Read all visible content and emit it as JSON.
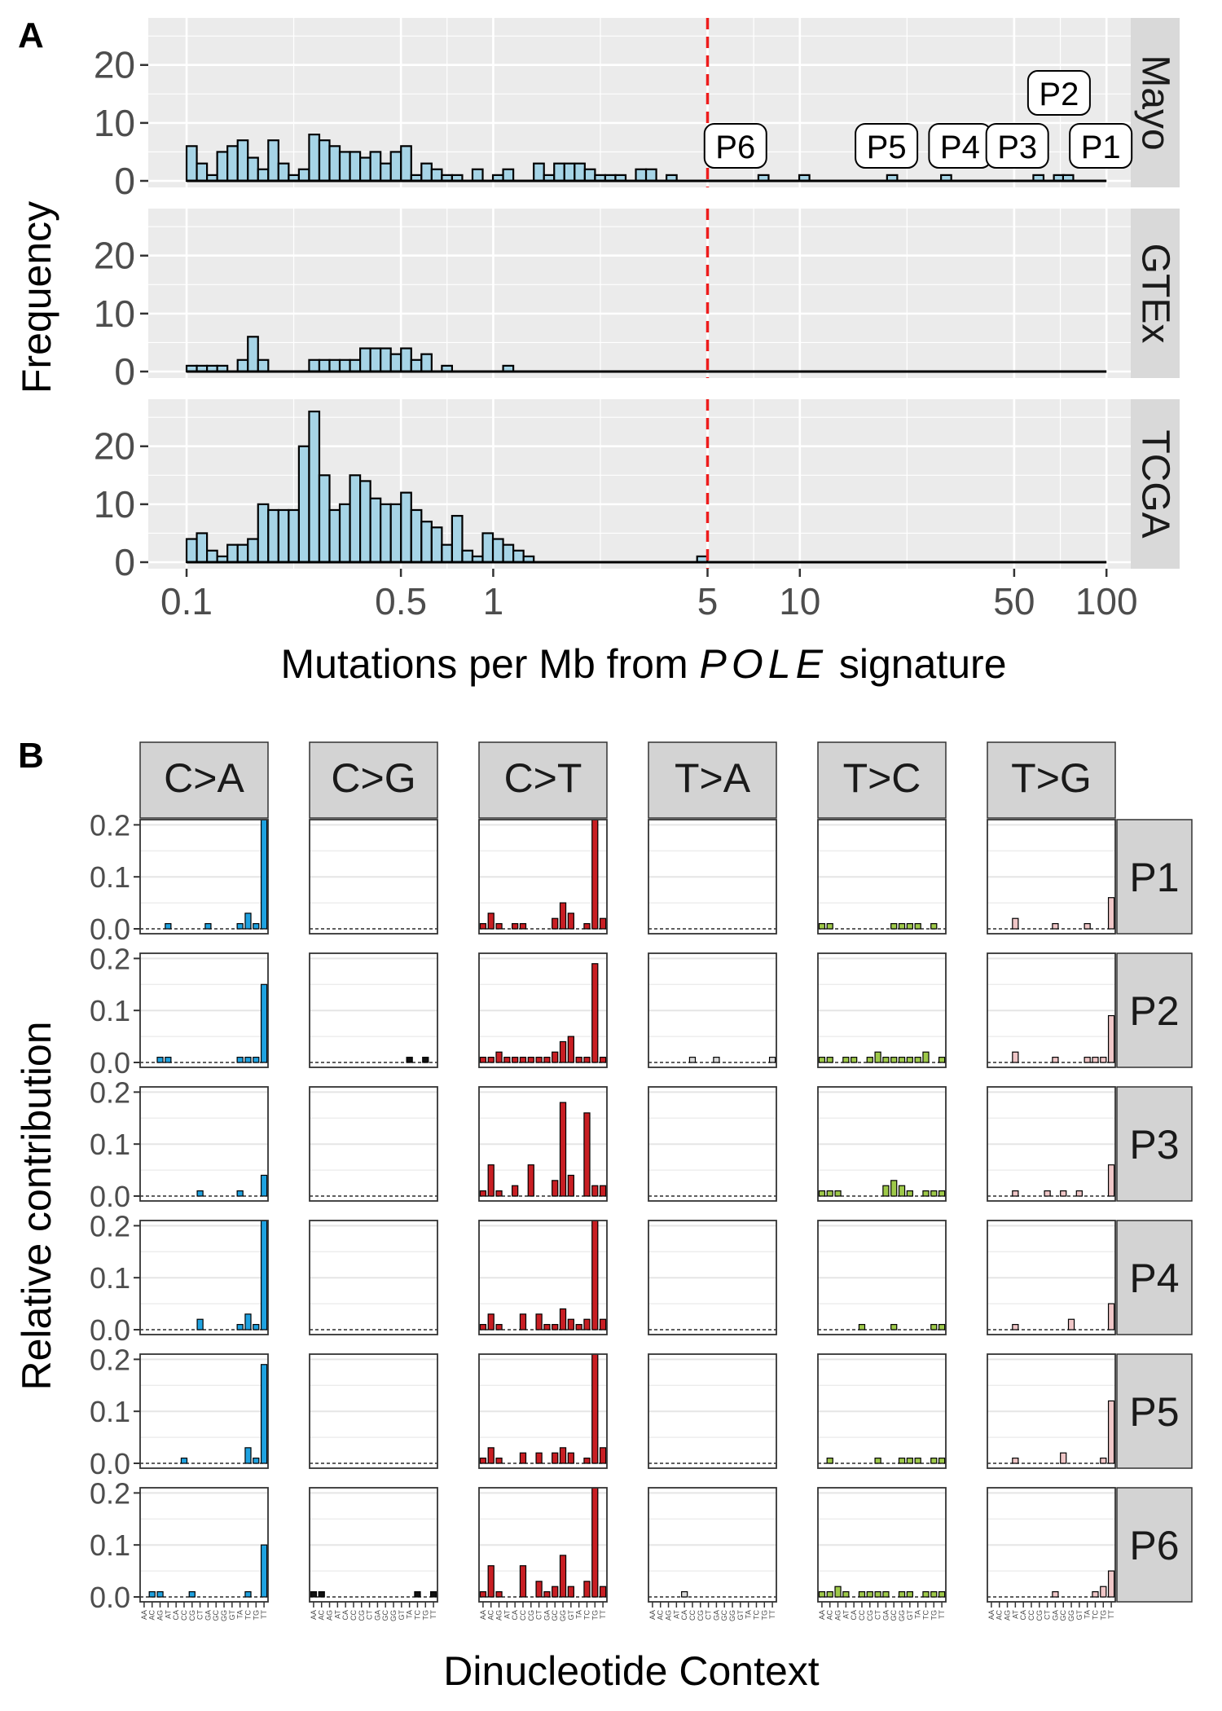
{
  "panel_a": {
    "letter": "A",
    "ylabel": "Frequency",
    "xlabel_prefix": "Mutations per Mb from ",
    "xlabel_italic": "POLE",
    "xlabel_suffix": " signature",
    "threshold_color": "#ee1c1c",
    "bar_color": "#a6d4e6"
  },
  "panel_b": {
    "letter": "B",
    "ylabel": "Relative contribution",
    "xlabel": "Dinucleotide Context"
  },
  "chart_data": [
    {
      "type": "bar",
      "title": "",
      "xlabel": "Mutations per Mb from POLE signature",
      "ylabel": "Frequency",
      "xscale": "log10",
      "xlim": [
        0.075,
        120
      ],
      "ylim": [
        0,
        27
      ],
      "xticks": [
        0.1,
        0.5,
        1,
        5,
        10,
        50,
        100
      ],
      "xtick_labels": [
        "0.1",
        "0.5",
        "1",
        "5",
        "10",
        "50",
        "100"
      ],
      "yticks": [
        0,
        10,
        20
      ],
      "ytick_labels": [
        "0",
        "10",
        "20"
      ],
      "threshold_x": 5,
      "threshold_style": "dashed red",
      "bin_start_log10": -1,
      "bin_width_log10": 0.0333,
      "facets": [
        {
          "name": "Mayo",
          "counts": [
            6,
            3,
            1,
            5,
            6,
            7,
            4,
            2,
            7,
            3,
            1,
            2,
            8,
            7,
            6,
            5,
            5,
            4,
            5,
            3,
            5,
            6,
            1,
            3,
            2,
            1,
            1,
            0,
            2,
            0,
            1,
            2,
            0,
            0,
            3,
            1,
            3,
            3,
            3,
            2,
            1,
            1,
            1,
            0,
            2,
            2,
            0,
            1,
            0,
            0,
            0,
            0,
            0,
            0,
            0,
            0,
            1,
            0,
            0,
            0,
            1
          ],
          "outliers": [
            {
              "x": 20,
              "count": 1
            },
            {
              "x": 30,
              "count": 1
            },
            {
              "x": 60,
              "count": 1
            },
            {
              "x": 70,
              "count": 1
            },
            {
              "x": 75,
              "count": 1
            }
          ],
          "labels": [
            {
              "text": "P6",
              "x": 5.8
            },
            {
              "text": "P5",
              "x": 20
            },
            {
              "text": "P4",
              "x": 30
            },
            {
              "text": "P3",
              "x": 60
            },
            {
              "text": "P2",
              "x": 70
            },
            {
              "text": "P1",
              "x": 75
            }
          ]
        },
        {
          "name": "GTEx",
          "counts": [
            1,
            1,
            1,
            1,
            0,
            2,
            6,
            2,
            0,
            0,
            0,
            0,
            2,
            2,
            2,
            2,
            2,
            4,
            4,
            4,
            3,
            4,
            2,
            3,
            0,
            1,
            0,
            0,
            0,
            0,
            0,
            1,
            0,
            0,
            0,
            0,
            0,
            0,
            0,
            0,
            0,
            0,
            0,
            0,
            0,
            0,
            0,
            0,
            0,
            0,
            0,
            0,
            0,
            0,
            0,
            0,
            0,
            0,
            0,
            0,
            0
          ],
          "outliers": [],
          "labels": []
        },
        {
          "name": "TCGA",
          "counts": [
            4,
            5,
            2,
            1,
            3,
            3,
            4,
            10,
            9,
            9,
            9,
            20,
            26,
            15,
            9,
            10,
            15,
            14,
            11,
            10,
            10,
            12,
            9,
            7,
            6,
            3,
            8,
            2,
            1,
            5,
            4,
            3,
            2,
            1,
            0,
            0,
            0,
            0,
            0,
            0,
            0,
            0,
            0,
            0,
            0,
            0,
            0,
            0,
            0,
            0,
            1
          ],
          "outliers": [],
          "labels": []
        }
      ]
    },
    {
      "type": "bar",
      "title": "",
      "xlabel": "Dinucleotide Context",
      "ylabel": "Relative contribution",
      "ylim": [
        0,
        0.21
      ],
      "yticks": [
        0.0,
        0.1,
        0.2
      ],
      "ytick_labels": [
        "0.0",
        "0.1",
        "0.2"
      ],
      "categories": [
        "AA",
        "AC",
        "AG",
        "AT",
        "CA",
        "CC",
        "CG",
        "CT",
        "GA",
        "GC",
        "GG",
        "GT",
        "TA",
        "TC",
        "TG",
        "TT"
      ],
      "columns": [
        {
          "name": "C>A",
          "color": "#1fa2e0"
        },
        {
          "name": "C>G",
          "color": "#111111"
        },
        {
          "name": "C>T",
          "color": "#c81e23"
        },
        {
          "name": "T>A",
          "color": "#d9d9d9"
        },
        {
          "name": "T>C",
          "color": "#9ec949"
        },
        {
          "name": "T>G",
          "color": "#f0c6c7"
        }
      ],
      "rows": [
        {
          "name": "P1",
          "values": [
            [
              0,
              0,
              0,
              0.01,
              0,
              0,
              0,
              0,
              0.01,
              0,
              0,
              0,
              0.01,
              0.03,
              0.01,
              0.21
            ],
            [
              0,
              0,
              0,
              0,
              0,
              0,
              0,
              0,
              0,
              0,
              0,
              0,
              0,
              0,
              0,
              0
            ],
            [
              0.01,
              0.03,
              0.01,
              0,
              0.01,
              0.01,
              0,
              0,
              0,
              0.02,
              0.05,
              0.03,
              0,
              0.01,
              0.21,
              0.02
            ],
            [
              0,
              0,
              0,
              0,
              0,
              0,
              0,
              0,
              0,
              0,
              0,
              0,
              0,
              0,
              0,
              0
            ],
            [
              0.01,
              0.01,
              0,
              0,
              0,
              0,
              0,
              0,
              0,
              0.01,
              0.01,
              0.01,
              0.01,
              0,
              0.01,
              0
            ],
            [
              0,
              0,
              0,
              0.02,
              0,
              0,
              0,
              0,
              0.01,
              0,
              0,
              0,
              0.01,
              0,
              0,
              0.06
            ]
          ]
        },
        {
          "name": "P2",
          "values": [
            [
              0,
              0,
              0.01,
              0.01,
              0,
              0,
              0,
              0,
              0,
              0,
              0,
              0,
              0.01,
              0.01,
              0.01,
              0.15
            ],
            [
              0,
              0,
              0,
              0,
              0,
              0,
              0,
              0,
              0,
              0,
              0,
              0,
              0.01,
              0,
              0.01,
              0
            ],
            [
              0.01,
              0.01,
              0.02,
              0.01,
              0.01,
              0.01,
              0.01,
              0.01,
              0.01,
              0.02,
              0.04,
              0.05,
              0.01,
              0.01,
              0.19,
              0.01
            ],
            [
              0,
              0,
              0,
              0,
              0,
              0.01,
              0,
              0,
              0.01,
              0,
              0,
              0,
              0,
              0,
              0,
              0.01
            ],
            [
              0.01,
              0.01,
              0,
              0.01,
              0.01,
              0,
              0.01,
              0.02,
              0.01,
              0.01,
              0.01,
              0.01,
              0.01,
              0.02,
              0,
              0.01
            ],
            [
              0,
              0,
              0,
              0.02,
              0,
              0,
              0,
              0,
              0.01,
              0,
              0,
              0,
              0.01,
              0.01,
              0.01,
              0.09
            ]
          ]
        },
        {
          "name": "P3",
          "values": [
            [
              0,
              0,
              0,
              0,
              0,
              0,
              0,
              0.01,
              0,
              0,
              0,
              0,
              0.01,
              0,
              0,
              0.04
            ],
            [
              0,
              0,
              0,
              0,
              0,
              0,
              0,
              0,
              0,
              0,
              0,
              0,
              0,
              0,
              0,
              0
            ],
            [
              0.01,
              0.06,
              0.01,
              0,
              0.02,
              0,
              0.06,
              0,
              0,
              0.03,
              0.18,
              0.04,
              0,
              0.16,
              0.02,
              0.02
            ],
            [
              0,
              0,
              0,
              0,
              0,
              0,
              0,
              0,
              0,
              0,
              0,
              0,
              0,
              0,
              0,
              0
            ],
            [
              0.01,
              0.01,
              0.01,
              0,
              0,
              0,
              0,
              0,
              0.02,
              0.03,
              0.02,
              0.01,
              0,
              0.01,
              0.01,
              0.01
            ],
            [
              0,
              0,
              0,
              0.01,
              0,
              0,
              0,
              0.01,
              0,
              0.01,
              0,
              0.01,
              0,
              0,
              0,
              0.06
            ]
          ]
        },
        {
          "name": "P4",
          "values": [
            [
              0,
              0,
              0,
              0,
              0,
              0,
              0,
              0.02,
              0,
              0,
              0,
              0,
              0.01,
              0.03,
              0.01,
              0.21
            ],
            [
              0,
              0,
              0,
              0,
              0,
              0,
              0,
              0,
              0,
              0,
              0,
              0,
              0,
              0,
              0,
              0
            ],
            [
              0.01,
              0.03,
              0.01,
              0,
              0,
              0.03,
              0,
              0.03,
              0.01,
              0.01,
              0.04,
              0.02,
              0.01,
              0.02,
              0.21,
              0.02
            ],
            [
              0,
              0,
              0,
              0,
              0,
              0,
              0,
              0,
              0,
              0,
              0,
              0,
              0,
              0,
              0,
              0
            ],
            [
              0,
              0,
              0,
              0,
              0,
              0.01,
              0,
              0,
              0,
              0.01,
              0,
              0,
              0,
              0,
              0.01,
              0.01
            ],
            [
              0,
              0,
              0,
              0.01,
              0,
              0,
              0,
              0,
              0,
              0,
              0.02,
              0,
              0,
              0,
              0,
              0.05
            ]
          ]
        },
        {
          "name": "P5",
          "values": [
            [
              0,
              0,
              0,
              0,
              0,
              0.01,
              0,
              0,
              0,
              0,
              0,
              0,
              0,
              0.03,
              0.01,
              0.19
            ],
            [
              0,
              0,
              0,
              0,
              0,
              0,
              0,
              0,
              0,
              0,
              0,
              0,
              0,
              0,
              0,
              0
            ],
            [
              0.01,
              0.03,
              0.01,
              0,
              0,
              0.02,
              0,
              0.02,
              0,
              0.02,
              0.03,
              0.02,
              0,
              0.01,
              0.21,
              0.03
            ],
            [
              0,
              0,
              0,
              0,
              0,
              0,
              0,
              0,
              0,
              0,
              0,
              0,
              0,
              0,
              0,
              0
            ],
            [
              0,
              0.01,
              0,
              0,
              0,
              0,
              0,
              0.01,
              0,
              0,
              0.01,
              0.01,
              0.01,
              0,
              0.01,
              0.01
            ],
            [
              0,
              0,
              0,
              0.01,
              0,
              0,
              0,
              0,
              0,
              0.02,
              0,
              0,
              0,
              0,
              0.01,
              0.12
            ]
          ]
        },
        {
          "name": "P6",
          "values": [
            [
              0,
              0.01,
              0.01,
              0,
              0,
              0,
              0.01,
              0,
              0,
              0,
              0,
              0,
              0,
              0.01,
              0,
              0.1
            ],
            [
              0.01,
              0.01,
              0,
              0,
              0,
              0,
              0,
              0,
              0,
              0,
              0,
              0,
              0,
              0.01,
              0,
              0.01
            ],
            [
              0.01,
              0.06,
              0.01,
              0,
              0,
              0.06,
              0,
              0.03,
              0.01,
              0.02,
              0.08,
              0.02,
              0,
              0.03,
              0.21,
              0.02
            ],
            [
              0,
              0,
              0,
              0,
              0.01,
              0,
              0,
              0,
              0,
              0,
              0,
              0,
              0,
              0,
              0,
              0
            ],
            [
              0.01,
              0.01,
              0.02,
              0.01,
              0,
              0.01,
              0.01,
              0.01,
              0.01,
              0,
              0.01,
              0.01,
              0,
              0.01,
              0.01,
              0.01
            ],
            [
              0,
              0,
              0,
              0,
              0,
              0,
              0,
              0,
              0.01,
              0,
              0,
              0,
              0,
              0.01,
              0.02,
              0.05
            ]
          ]
        }
      ]
    }
  ]
}
